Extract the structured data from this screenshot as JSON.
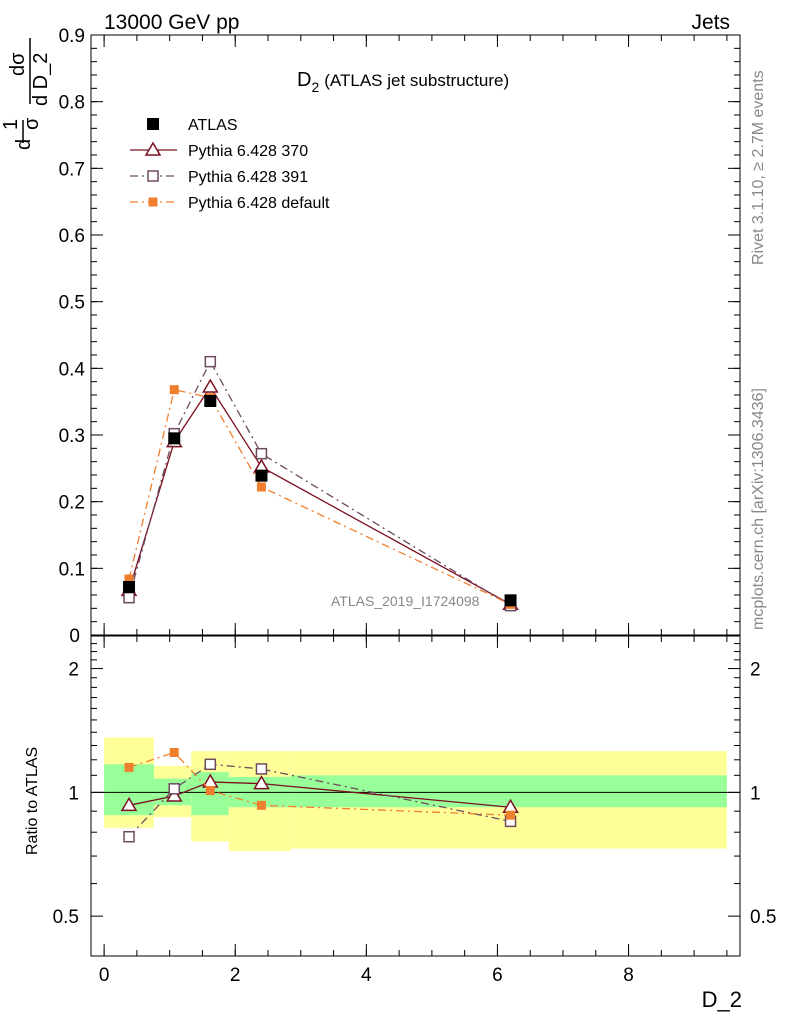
{
  "header": {
    "left": "13000 GeV pp",
    "right": "Jets"
  },
  "side_labels": {
    "top": "Rivet 3.1.10, ≥ 2.7M events",
    "bottom": "mcplots.cern.ch [arXiv:1306.3436]"
  },
  "watermark": "ATLAS_2019_I1724098",
  "chart_data": [
    {
      "type": "scatter",
      "title": "D₂ (ATLAS jet substructure)",
      "title_main": "D",
      "title_sub": "2",
      "title_rest": "(ATLAS jet substructure)",
      "ylabel": "1/σ dσ/d D_2",
      "ylabel_parts": {
        "one": "1",
        "sigma": "σ",
        "d": "d",
        "dsigma": "dσ",
        "dvar": "d D_2"
      },
      "xlim": [
        -0.2,
        9.7
      ],
      "ylim": [
        0,
        0.9
      ],
      "yticks": [
        0.1,
        0.2,
        0.3,
        0.4,
        0.5,
        0.6,
        0.7,
        0.8,
        0.9
      ],
      "ytick_labels": [
        "0.1",
        "0.2",
        "0.3",
        "0.4",
        "0.5",
        "0.6",
        "0.7",
        "0.8",
        "0.9"
      ],
      "legend_position": "top-left",
      "series": [
        {
          "name": "ATLAS",
          "color": "#000000",
          "marker": "filled-square",
          "line": "none",
          "x": [
            0.38,
            1.07,
            1.62,
            2.4,
            6.2
          ],
          "y": [
            0.072,
            0.295,
            0.351,
            0.239,
            0.052
          ]
        },
        {
          "name": "Pythia 6.428 370",
          "color": "#7b1020",
          "marker": "open-triangle",
          "line": "solid",
          "x": [
            0.38,
            1.07,
            1.62,
            2.4,
            6.2
          ],
          "y": [
            0.067,
            0.29,
            0.372,
            0.252,
            0.046
          ]
        },
        {
          "name": "Pythia 6.428 391",
          "color": "#6e4a60",
          "marker": "open-square",
          "line": "dash-dot",
          "x": [
            0.38,
            1.07,
            1.62,
            2.4,
            6.2
          ],
          "y": [
            0.056,
            0.302,
            0.41,
            0.272,
            0.044
          ]
        },
        {
          "name": "Pythia 6.428 default",
          "color": "#f07f2d",
          "marker": "filled-small-square",
          "line": "dash-dot",
          "x": [
            0.38,
            1.07,
            1.62,
            2.4,
            6.2
          ],
          "y": [
            0.084,
            0.368,
            0.356,
            0.222,
            0.046
          ]
        }
      ]
    },
    {
      "type": "line",
      "ylabel": "Ratio to ATLAS",
      "xlabel": "D_2",
      "xlim": [
        -0.2,
        9.7
      ],
      "ylim": [
        0.4,
        2.4
      ],
      "ylog": true,
      "xticks": [
        0,
        2,
        4,
        6,
        8
      ],
      "xtick_labels": [
        "0",
        "2",
        "4",
        "6",
        "8"
      ],
      "yticks": [
        0.5,
        1,
        2
      ],
      "ytick_labels": [
        "0.5",
        "1",
        "2"
      ],
      "bands": [
        {
          "x0": 0.0,
          "x1": 0.76,
          "green": [
            0.88,
            1.17
          ],
          "yellow": [
            0.82,
            1.36
          ]
        },
        {
          "x0": 0.76,
          "x1": 1.33,
          "green": [
            0.93,
            1.08
          ],
          "yellow": [
            0.87,
            1.16
          ]
        },
        {
          "x0": 1.33,
          "x1": 1.9,
          "green": [
            0.88,
            1.12
          ],
          "yellow": [
            0.76,
            1.26
          ]
        },
        {
          "x0": 1.9,
          "x1": 2.85,
          "green": [
            0.92,
            1.09
          ],
          "yellow": [
            0.72,
            1.26
          ]
        },
        {
          "x0": 2.85,
          "x1": 9.5,
          "green": [
            0.92,
            1.1
          ],
          "yellow": [
            0.73,
            1.26
          ]
        }
      ],
      "series": [
        {
          "name": "Pythia 6.428 370",
          "color": "#7b1020",
          "marker": "open-triangle",
          "line": "solid",
          "x": [
            0.38,
            1.07,
            1.62,
            2.4,
            6.2
          ],
          "y": [
            0.93,
            0.98,
            1.06,
            1.05,
            0.92
          ]
        },
        {
          "name": "Pythia 6.428 391",
          "color": "#6e4a60",
          "marker": "open-square",
          "line": "dash-dot",
          "x": [
            0.38,
            1.07,
            1.62,
            2.4,
            6.2
          ],
          "y": [
            0.78,
            1.02,
            1.17,
            1.14,
            0.85
          ]
        },
        {
          "name": "Pythia 6.428 default",
          "color": "#f07f2d",
          "marker": "filled-small-square",
          "line": "dash-dot",
          "x": [
            0.38,
            1.07,
            1.62,
            2.4,
            6.2
          ],
          "y": [
            1.15,
            1.25,
            1.01,
            0.93,
            0.88
          ]
        }
      ]
    }
  ]
}
